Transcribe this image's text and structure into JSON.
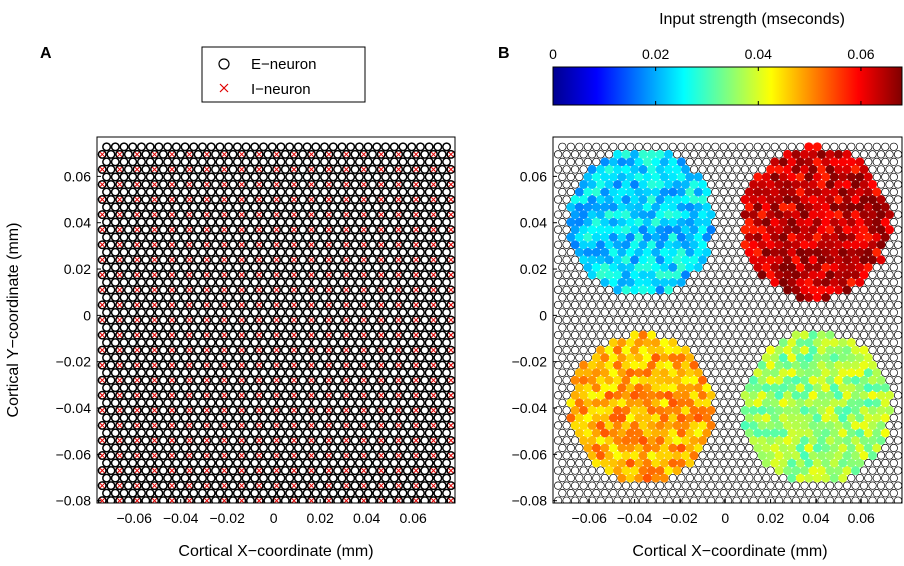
{
  "chart_data": [
    {
      "panel": "A",
      "type": "scatter",
      "xlabel": "Cortical X−coordinate (mm)",
      "ylabel": "Cortical Y−coordinate (mm)",
      "xlim": [
        -0.076,
        0.078
      ],
      "ylim": [
        -0.081,
        0.077
      ],
      "xticks": [
        -0.06,
        -0.04,
        -0.02,
        0,
        0.02,
        0.04,
        0.06
      ],
      "xtick_labels": [
        "−0.06",
        "−0.04",
        "−0.02",
        "0",
        "0.02",
        "0.04",
        "0.06"
      ],
      "yticks": [
        0.06,
        0.04,
        0.02,
        0,
        -0.02,
        -0.04,
        -0.06,
        -0.08
      ],
      "ytick_labels": [
        "0.06",
        "0.04",
        "0.02",
        "0",
        "−0.02",
        "−0.04",
        "−0.06",
        "−0.08"
      ],
      "legend": {
        "position": "top",
        "entries": [
          "E−neuron",
          "I−neuron"
        ]
      },
      "series": [
        {
          "name": "E−neuron",
          "marker": "circle",
          "color": "#000000",
          "grid": {
            "spacing": 0.00375,
            "row_spacing": 0.00325,
            "x_start": -0.07375,
            "x_end": 0.07625,
            "y_start": -0.08,
            "y_end": 0.075,
            "odd_row_offset": 0.001875
          }
        },
        {
          "name": "I−neuron",
          "marker": "x",
          "color": "#e00000",
          "pattern": "every second neuron on alternate rows"
        }
      ],
      "grid": false
    },
    {
      "panel": "B",
      "type": "scatter",
      "xlabel": "Cortical X−coordinate (mm)",
      "ylabel": "",
      "xlim": [
        -0.076,
        0.078
      ],
      "ylim": [
        -0.081,
        0.077
      ],
      "xticks": [
        -0.06,
        -0.04,
        -0.02,
        0,
        0.02,
        0.04,
        0.06
      ],
      "xtick_labels": [
        "−0.06",
        "−0.04",
        "−0.02",
        "0",
        "0.02",
        "0.04",
        "0.06"
      ],
      "yticks": [
        0.06,
        0.04,
        0.02,
        0,
        -0.02,
        -0.04,
        -0.06,
        -0.08
      ],
      "ytick_labels": [
        "0.06",
        "0.04",
        "0.02",
        "0",
        "−0.02",
        "−0.04",
        "−0.06",
        "−0.08"
      ],
      "colorbar": {
        "label": "Input strength (mseconds)",
        "range": [
          0,
          0.068
        ],
        "ticks": [
          0,
          0.02,
          0.04,
          0.06
        ],
        "tick_labels": [
          "0",
          "0.02",
          "0.04",
          "0.06"
        ],
        "colormap": "jet"
      },
      "stimulated_regions": [
        {
          "name": "top-left",
          "center": [
            -0.037,
            0.04
          ],
          "radius": 0.032,
          "mean_input": 0.023
        },
        {
          "name": "top-right",
          "center": [
            0.04,
            0.04
          ],
          "radius": 0.033,
          "mean_input": 0.063
        },
        {
          "name": "bottom-left",
          "center": [
            -0.037,
            -0.04
          ],
          "radius": 0.032,
          "mean_input": 0.048
        },
        {
          "name": "bottom-right",
          "center": [
            0.04,
            -0.04
          ],
          "radius": 0.033,
          "mean_input": 0.036
        }
      ],
      "grid": false
    }
  ],
  "panel_labels": {
    "a": "A",
    "b": "B"
  },
  "colors": {
    "e_marker": "#000000",
    "i_marker": "#e00000"
  }
}
